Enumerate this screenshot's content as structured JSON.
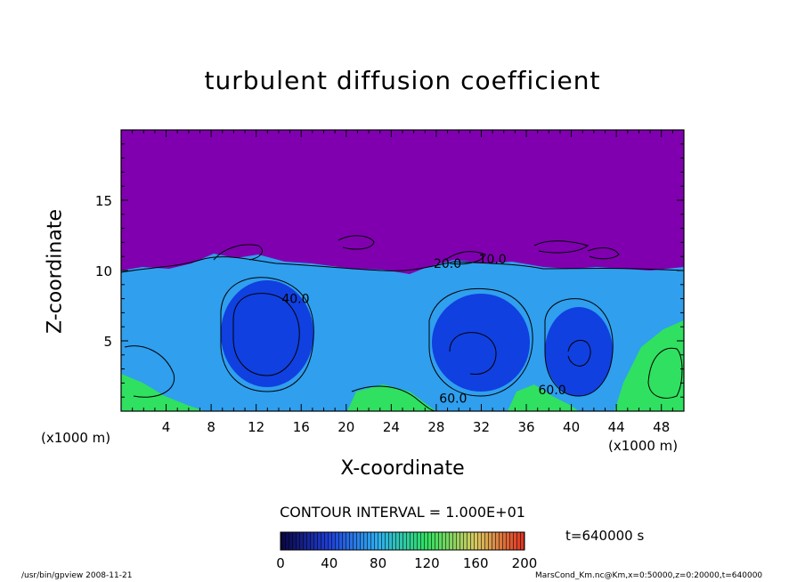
{
  "chart_data": {
    "type": "heatmap",
    "title": "turbulent diffusion coefficient",
    "xlabel": "X-coordinate",
    "ylabel": "Z-coordinate",
    "x_unit_label": "(x1000 m)",
    "xlim": [
      0,
      50
    ],
    "ylim": [
      0,
      20
    ],
    "x_ticks": [
      4,
      8,
      12,
      16,
      20,
      24,
      28,
      32,
      36,
      40,
      44,
      48
    ],
    "y_ticks": [
      5,
      10,
      15
    ],
    "contour_interval": "CONTOUR INTERVAL = 1.000E+01",
    "colorbar": {
      "min": 0,
      "max": 200,
      "ticks": [
        0,
        40,
        80,
        120,
        160,
        200
      ]
    },
    "contour_labels": [
      {
        "text": "60.0",
        "x": 29.5,
        "y": 0.6
      },
      {
        "text": "60.0",
        "x": 38.3,
        "y": 1.2
      },
      {
        "text": "40.0",
        "x": 15.5,
        "y": 7.7
      },
      {
        "text": "20.0",
        "x": 29.0,
        "y": 10.2
      },
      {
        "text": "10.0",
        "x": 33.0,
        "y": 10.5
      }
    ],
    "time_label": "t=640000 s"
  },
  "colors": {
    "upper_region": "#8000b0",
    "low_value": "#1040e0",
    "mid_value": "#2f9fee",
    "high_value": "#30e060"
  },
  "footer": {
    "left": "/usr/bin/gpview   2008-11-21",
    "right": "MarsCond_Km.nc@Km,x=0:50000,z=0:20000,t=640000"
  }
}
